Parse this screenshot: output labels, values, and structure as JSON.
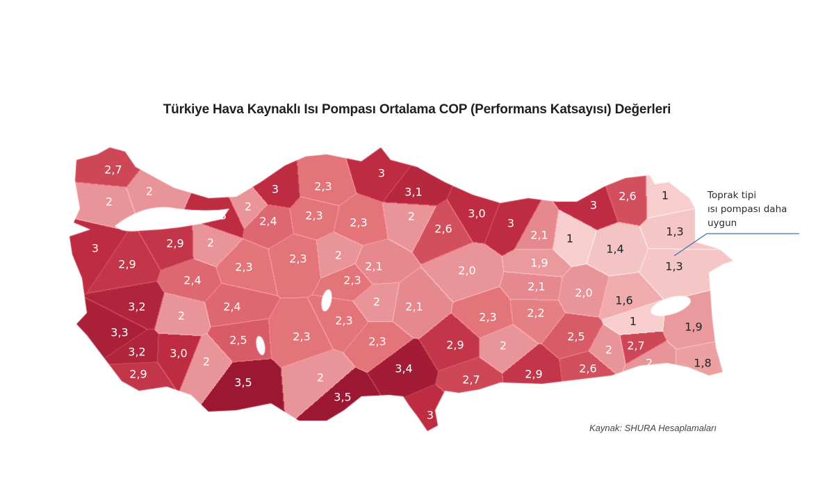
{
  "title": "Türkiye Hava Kaynaklı Isı Pompası Ortalama COP (Performans Katsayısı) Değerleri",
  "annotation": {
    "lines": [
      "Toprak tipi",
      "ısı pompası daha",
      "uygun"
    ],
    "line_color": "#3a6fb0"
  },
  "source": "Kaynak: SHURA Hesaplamaları",
  "color_scale": {
    "low": "#f7cccc",
    "mid": "#e27378",
    "high": "#9c1832"
  },
  "province_values": [
    "2,7",
    "2",
    "2",
    "3",
    "3",
    "2",
    "2,3",
    "3",
    "3,1",
    "2,4",
    "2,3",
    "2,3",
    "2",
    "2,6",
    "3,0",
    "3",
    "2,1",
    "1",
    "3",
    "2,6",
    "1",
    "1,3",
    "1,4",
    "1,3",
    "3",
    "2,9",
    "2",
    "2,9",
    "2,3",
    "2,3",
    "2",
    "2,1",
    "2,0",
    "1,9",
    "2,4",
    "2,3",
    "2,1",
    "2,0",
    "1,6",
    "3,2",
    "2,4",
    "2",
    "2",
    "2,1",
    "2,2",
    "2,3",
    "1",
    "2,3",
    "1,9",
    "3,3",
    "2,5",
    "2,3",
    "2,5",
    "2,3",
    "2,9",
    "2",
    "2,7",
    "3,2",
    "3,0",
    "2",
    "2",
    "3,4",
    "2,9",
    "2",
    "1,8",
    "2",
    "2,6",
    "2,7",
    "2,9",
    "3,5",
    "3,5",
    "3"
  ]
}
